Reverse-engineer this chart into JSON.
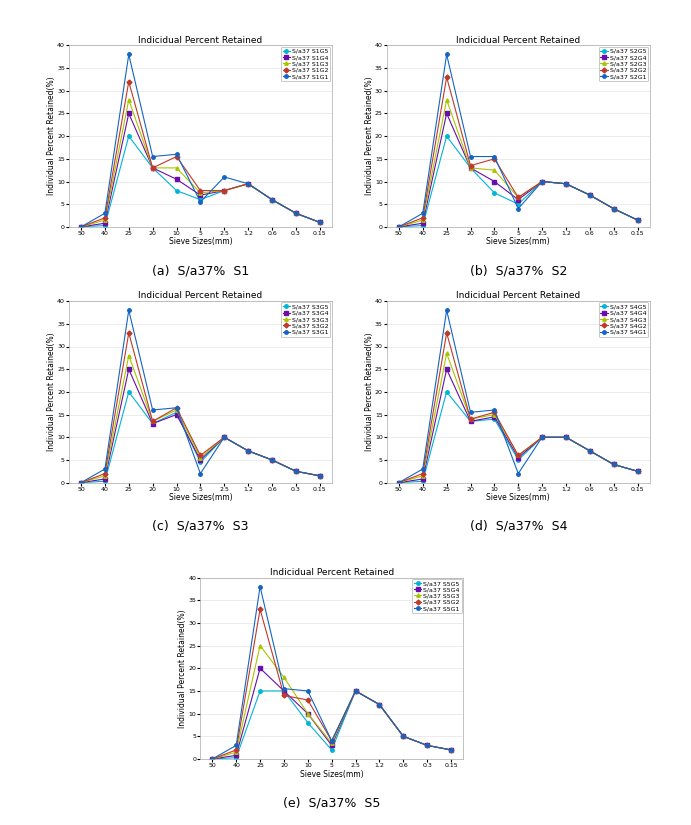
{
  "title": "Indicidual Percent Retained",
  "xlabel": "Sieve Sizes(mm)",
  "ylabel": "Individual Percent Retained(%)",
  "sieve_labels": [
    "50",
    "40",
    "25",
    "20",
    "10",
    "5",
    "2.5",
    "1.2",
    "0.6",
    "0.3",
    "0.15"
  ],
  "ylim": [
    0,
    40
  ],
  "yticks": [
    0,
    5,
    10,
    15,
    20,
    25,
    30,
    35,
    40
  ],
  "subplots": [
    {
      "label": "(a)  S/a37%  S1",
      "legend_labels": [
        "S/a37 S1G5",
        "S/a37 S1G4",
        "S/a37 S1G3",
        "S/a37 S1G2",
        "S/a37 S1G1"
      ],
      "series": [
        [
          0,
          0.3,
          20,
          13,
          8,
          6,
          8,
          9.5,
          6,
          3,
          1
        ],
        [
          0,
          0.8,
          25,
          13,
          10.5,
          7,
          8,
          9.5,
          6,
          3,
          1
        ],
        [
          0,
          1.5,
          28,
          13,
          13,
          7.5,
          8,
          9.5,
          6,
          3,
          1
        ],
        [
          0,
          2,
          32,
          13,
          15.5,
          8,
          8,
          9.5,
          6,
          3,
          1
        ],
        [
          0,
          3,
          38,
          15.5,
          16,
          5.5,
          11,
          9.5,
          6,
          3,
          1
        ]
      ],
      "colors": [
        "#00b4d8",
        "#6a0dad",
        "#a8c500",
        "#c0392b",
        "#1565c0"
      ],
      "markers": [
        "o",
        "s",
        "^",
        "D",
        "o"
      ]
    },
    {
      "label": "(b)  S/a37%  S2",
      "legend_labels": [
        "S/a37 S2G5",
        "S/a37 S2G4",
        "S/a37 S2G3",
        "S/a37 S2G2",
        "S/a37 S2G1"
      ],
      "series": [
        [
          0,
          0.3,
          20,
          13,
          7.5,
          5,
          10,
          9.5,
          7,
          4,
          1.5
        ],
        [
          0,
          0.8,
          25,
          13,
          10,
          6,
          10,
          9.5,
          7,
          4,
          1.5
        ],
        [
          0,
          1.5,
          28,
          13,
          12.5,
          6.5,
          10,
          9.5,
          7,
          4,
          1.5
        ],
        [
          0,
          2,
          33,
          13.5,
          15,
          6.5,
          10,
          9.5,
          7,
          4,
          1.5
        ],
        [
          0,
          3,
          38,
          15.5,
          15.5,
          4,
          10,
          9.5,
          7,
          4,
          1.5
        ]
      ],
      "colors": [
        "#00b4d8",
        "#6a0dad",
        "#a8c500",
        "#c0392b",
        "#1565c0"
      ],
      "markers": [
        "o",
        "s",
        "^",
        "D",
        "o"
      ]
    },
    {
      "label": "(c)  S/a37%  S3",
      "legend_labels": [
        "S/a37 S3G5",
        "S/a37 S3G4",
        "S/a37 S3G3",
        "S/a37 S3G2",
        "S/a37 S3G1"
      ],
      "series": [
        [
          0,
          0.3,
          20,
          13,
          15.5,
          4.5,
          10,
          7,
          5,
          2.5,
          1.5
        ],
        [
          0,
          0.8,
          25,
          13,
          15,
          5,
          10,
          7,
          5,
          2.5,
          1.5
        ],
        [
          0,
          1.5,
          28,
          13.5,
          16,
          5.5,
          10,
          7,
          5,
          2.5,
          1.5
        ],
        [
          0,
          2,
          33,
          13.5,
          16.5,
          6,
          10,
          7,
          5,
          2.5,
          1.5
        ],
        [
          0,
          3,
          38,
          16,
          16.5,
          2,
          10,
          7,
          5,
          2.5,
          1.5
        ]
      ],
      "colors": [
        "#00b4d8",
        "#6a0dad",
        "#a8c500",
        "#c0392b",
        "#1565c0"
      ],
      "markers": [
        "o",
        "s",
        "^",
        "D",
        "o"
      ]
    },
    {
      "label": "(d)  S/a37%  S4",
      "legend_labels": [
        "S/a37 S4G5",
        "S/a37 S4G4",
        "S/a37 S4G3",
        "S/a37 S4G2",
        "S/a37 S4G1"
      ],
      "series": [
        [
          0,
          0.3,
          20,
          13.5,
          14,
          5,
          10,
          10,
          7,
          4,
          2.5
        ],
        [
          0,
          0.8,
          25,
          13.5,
          14.5,
          5.5,
          10,
          10,
          7,
          4,
          2.5
        ],
        [
          0,
          1.5,
          28.5,
          14,
          15,
          6,
          10,
          10,
          7,
          4,
          2.5
        ],
        [
          0,
          2,
          33,
          14,
          15.5,
          6,
          10,
          10,
          7,
          4,
          2.5
        ],
        [
          0,
          3,
          38,
          15.5,
          16,
          2,
          10,
          10,
          7,
          4,
          2.5
        ]
      ],
      "colors": [
        "#00b4d8",
        "#6a0dad",
        "#a8c500",
        "#c0392b",
        "#1565c0"
      ],
      "markers": [
        "o",
        "s",
        "^",
        "D",
        "o"
      ]
    },
    {
      "label": "(e)  S/a37%  S5",
      "legend_labels": [
        "S/a37 S5G5",
        "S/a37 S5G4",
        "S/a37 S5G3",
        "S/a37 S5G2",
        "S/a37 S5G1"
      ],
      "series": [
        [
          0,
          0.3,
          15,
          15,
          8,
          2,
          15,
          12,
          5,
          3,
          2
        ],
        [
          0,
          0.8,
          20,
          15,
          10,
          3,
          15,
          12,
          5,
          3,
          2
        ],
        [
          0,
          1.5,
          25,
          18,
          10,
          3.5,
          15,
          12,
          5,
          3,
          2
        ],
        [
          0,
          2,
          33,
          14,
          13,
          4,
          15,
          12,
          5,
          3,
          2
        ],
        [
          0,
          3,
          38,
          15.5,
          15,
          4,
          15,
          12,
          5,
          3,
          2
        ]
      ],
      "colors": [
        "#00b4d8",
        "#6a0dad",
        "#a8c500",
        "#c0392b",
        "#1565c0"
      ],
      "markers": [
        "o",
        "s",
        "^",
        "D",
        "o"
      ]
    }
  ],
  "linewidth": 0.8,
  "markersize": 2.5,
  "title_fontsize": 6.5,
  "label_fontsize": 5.5,
  "tick_fontsize": 4.5,
  "legend_fontsize": 4.5,
  "caption_fontsize": 9,
  "background_color": "#ffffff",
  "grid_color": "#d0d0d0",
  "grid_alpha": 0.7,
  "fig_width": 6.91,
  "fig_height": 8.25,
  "fig_dpi": 100
}
